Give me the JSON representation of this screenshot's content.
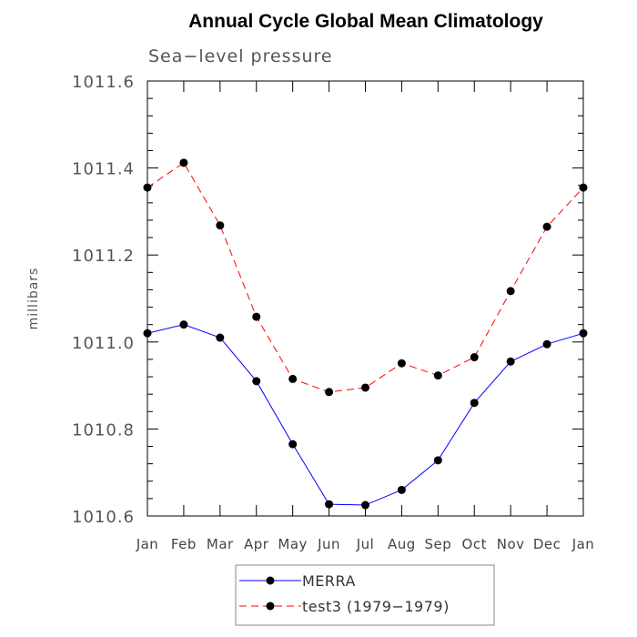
{
  "chart_data": {
    "type": "line",
    "title": "Annual Cycle Global Mean Climatology",
    "subtitle": "Sea−level pressure",
    "xlabel": "",
    "ylabel": "millibars",
    "ylim": [
      1010.6,
      1011.6
    ],
    "yticks": [
      "1010.6",
      "1010.8",
      "1011.0",
      "1011.2",
      "1011.4",
      "1011.6"
    ],
    "categories": [
      "Jan",
      "Feb",
      "Mar",
      "Apr",
      "May",
      "Jun",
      "Jul",
      "Aug",
      "Sep",
      "Oct",
      "Nov",
      "Dec",
      "Jan"
    ],
    "grid": false,
    "legend_position": "bottom-center",
    "series": [
      {
        "name": "MERRA",
        "color": "#0000ff",
        "line_style": "solid",
        "values": [
          1011.02,
          1011.04,
          1011.01,
          1010.91,
          1010.765,
          1010.627,
          1010.625,
          1010.66,
          1010.728,
          1010.86,
          1010.955,
          1010.995,
          1011.02
        ]
      },
      {
        "name": "test3 (1979−1979)",
        "color": "#ff0000",
        "line_style": "dashed",
        "values": [
          1011.355,
          1011.412,
          1011.268,
          1011.058,
          1010.915,
          1010.885,
          1010.895,
          1010.951,
          1010.923,
          1010.965,
          1011.117,
          1011.265,
          1011.355
        ]
      }
    ]
  }
}
